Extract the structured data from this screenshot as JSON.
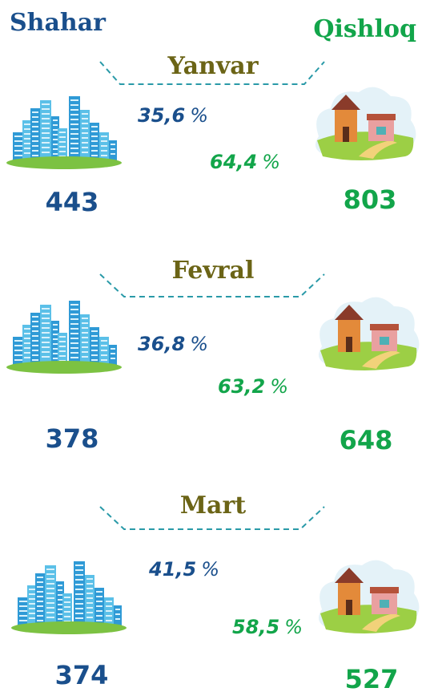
{
  "header": {
    "left": "Shahar",
    "right": "Qishloq"
  },
  "months": [
    {
      "name": "Yanvar",
      "city_percent": {
        "value": "35,6",
        "unit": "%"
      },
      "village_percent": {
        "value": "64,4",
        "unit": "%"
      },
      "city_count": "443",
      "village_count": "803"
    },
    {
      "name": "Fevral",
      "city_percent": {
        "value": "36,8",
        "unit": "%"
      },
      "village_percent": {
        "value": "63,2",
        "unit": "%"
      },
      "city_count": "378",
      "village_count": "648"
    },
    {
      "name": "Mart",
      "city_percent": {
        "value": "41,5",
        "unit": "%"
      },
      "village_percent": {
        "value": "58,5",
        "unit": "%"
      },
      "city_count": "374",
      "village_count": "527"
    }
  ]
}
